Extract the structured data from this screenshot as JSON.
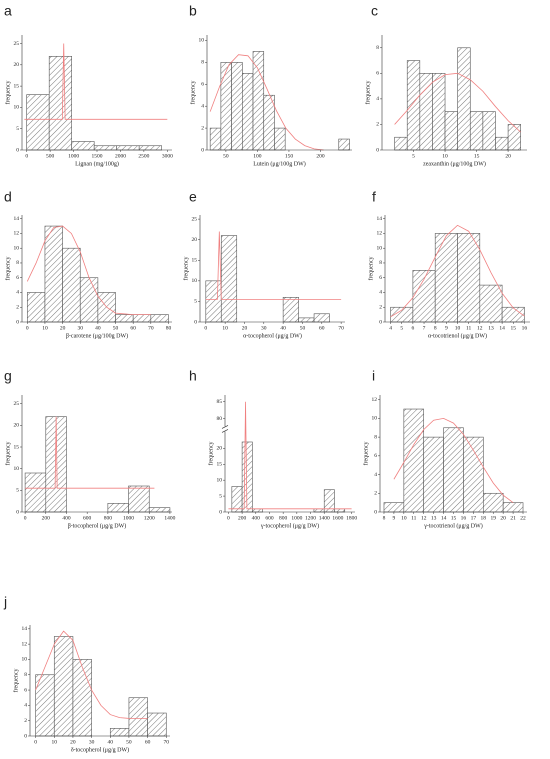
{
  "chart_data": [
    {
      "type": "histogram",
      "label": "a",
      "xlabel": "Lignan (mg/100g)",
      "ylabel": "frequency",
      "bins": [
        0,
        480,
        960,
        1440,
        1920,
        2400,
        2880
      ],
      "values": [
        13,
        22,
        2,
        1,
        1,
        1
      ],
      "color": "#555555",
      "curve": {
        "x": [
          -50,
          760,
          790,
          820,
          3000
        ],
        "values": [
          7.2,
          7.2,
          25,
          7.2,
          7.2
        ],
        "color": "#f08080"
      },
      "xlim": [
        -100,
        3100
      ],
      "ylim": [
        0,
        27
      ],
      "xticks": [
        0,
        500,
        1000,
        1500,
        2000,
        2500,
        3000
      ],
      "yticks": [
        0,
        5,
        10,
        15,
        20,
        25
      ]
    },
    {
      "type": "histogram",
      "label": "b",
      "xlabel": "Lutein (μg/100g DW)",
      "ylabel": "frequency",
      "bins": [
        25,
        42,
        59,
        76,
        93,
        110,
        127,
        144,
        161,
        178,
        195,
        212,
        229,
        246
      ],
      "values": [
        2,
        8,
        8,
        7,
        9,
        5,
        2,
        0,
        0,
        0,
        0,
        0,
        1
      ],
      "color": "#555555",
      "curve": {
        "x": [
          25,
          40,
          55,
          70,
          85,
          100,
          115,
          130,
          145,
          160,
          175,
          190,
          205
        ],
        "values": [
          3.5,
          5.8,
          7.8,
          8.7,
          8.6,
          7.5,
          5.6,
          3.6,
          2,
          1,
          0.4,
          0.1,
          0
        ],
        "color": "#f08080"
      },
      "xlim": [
        20,
        250
      ],
      "ylim": [
        0,
        10.5
      ],
      "xticks": [
        50,
        100,
        150,
        200
      ],
      "yticks": [
        0,
        2,
        4,
        6,
        8,
        10
      ]
    },
    {
      "type": "histogram",
      "label": "c",
      "xlabel": "zeaxanthin (μg/100g DW)",
      "ylabel": "frequency",
      "bins": [
        2,
        4,
        6,
        8,
        10,
        12,
        14,
        16,
        18,
        20,
        22
      ],
      "values": [
        1,
        7,
        6,
        6,
        3,
        8,
        3,
        3,
        1,
        2
      ],
      "color": "#555555",
      "curve": {
        "x": [
          2,
          4,
          6,
          8,
          10,
          12,
          14,
          16,
          18,
          20,
          22
        ],
        "values": [
          2,
          3.1,
          4.3,
          5.3,
          5.9,
          6,
          5.5,
          4.6,
          3.4,
          2.3,
          1.4
        ],
        "color": "#f08080"
      },
      "xlim": [
        0,
        23
      ],
      "ylim": [
        0,
        9
      ],
      "xticks": [
        5,
        10,
        15,
        20
      ],
      "yticks": [
        0,
        2,
        4,
        6,
        8
      ]
    },
    {
      "type": "histogram",
      "label": "d",
      "xlabel": "β-carotene (μg/100g DW)",
      "ylabel": "frequency",
      "bins": [
        0,
        10,
        20,
        30,
        40,
        50,
        60,
        70,
        80
      ],
      "values": [
        4,
        13,
        10,
        6,
        4,
        1,
        1,
        1
      ],
      "color": "#555555",
      "curve": {
        "x": [
          0,
          5,
          10,
          15,
          20,
          25,
          30,
          35,
          40,
          45,
          50,
          60,
          70
        ],
        "values": [
          5.5,
          8,
          11,
          12.8,
          13,
          12,
          9.5,
          6,
          3.5,
          2,
          1.2,
          1,
          1
        ],
        "color": "#f08080"
      },
      "xlim": [
        -3,
        82
      ],
      "ylim": [
        0,
        14.5
      ],
      "xticks": [
        0,
        10,
        20,
        30,
        40,
        50,
        60,
        70,
        80
      ],
      "yticks": [
        0,
        2,
        4,
        6,
        8,
        10,
        12,
        14
      ]
    },
    {
      "type": "histogram",
      "label": "e",
      "xlabel": "α-tocopherol (μg/g DW)",
      "ylabel": "frequency",
      "bins": [
        0,
        8,
        16,
        24,
        32,
        40,
        48,
        56,
        64
      ],
      "values": [
        10,
        21,
        0,
        0,
        0,
        6,
        1,
        2
      ],
      "color": "#555555",
      "curve": {
        "x": [
          0,
          6,
          7,
          8,
          70
        ],
        "values": [
          5.5,
          5.5,
          22,
          5.5,
          5.5
        ],
        "color": "#f08080"
      },
      "xlim": [
        -3,
        72
      ],
      "ylim": [
        0,
        26
      ],
      "xticks": [
        0,
        10,
        20,
        30,
        40,
        50,
        60,
        70
      ],
      "yticks": [
        0,
        5,
        10,
        15,
        20,
        25
      ]
    },
    {
      "type": "histogram",
      "label": "f",
      "xlabel": "α-tocotrienol (μg/g DW)",
      "ylabel": "frequency",
      "bins": [
        4,
        6,
        8,
        10,
        12,
        14,
        16
      ],
      "values": [
        2,
        7,
        12,
        12,
        5,
        2
      ],
      "color": "#555555",
      "curve": {
        "x": [
          4,
          5,
          6,
          7,
          8,
          9,
          10,
          11,
          12,
          13,
          14,
          15,
          16
        ],
        "values": [
          0.7,
          1.6,
          3.3,
          5.8,
          8.8,
          11.7,
          13.1,
          12.3,
          9.8,
          6.7,
          3.9,
          1.9,
          0.8
        ],
        "color": "#f08080"
      },
      "xlim": [
        3.5,
        16.5
      ],
      "ylim": [
        0,
        14.5
      ],
      "xticks": [
        4,
        5,
        6,
        7,
        8,
        9,
        10,
        11,
        12,
        13,
        14,
        15,
        16
      ],
      "yticks": [
        0,
        2,
        4,
        6,
        8,
        10,
        12,
        14
      ]
    },
    {
      "type": "histogram",
      "label": "g",
      "xlabel": "β-tocopherol (μg/g DW)",
      "ylabel": "frequency",
      "bins": [
        0,
        200,
        400,
        600,
        800,
        1000,
        1200,
        1400
      ],
      "values": [
        9,
        22,
        0,
        0,
        2,
        6,
        1
      ],
      "color": "#555555",
      "curve": {
        "x": [
          0,
          290,
          300,
          310,
          1250
        ],
        "values": [
          5.5,
          5.5,
          22,
          5.5,
          5.5
        ],
        "color": "#f08080"
      },
      "xlim": [
        -30,
        1420
      ],
      "ylim": [
        0,
        27
      ],
      "xticks": [
        0,
        200,
        400,
        600,
        800,
        1000,
        1200,
        1400
      ],
      "yticks": [
        0,
        5,
        10,
        15,
        20,
        25
      ]
    },
    {
      "type": "histogram",
      "label": "h",
      "xlabel": "γ-tocopherol (μg/g DW)",
      "ylabel": "frequency",
      "bins": [
        50,
        200,
        350,
        500,
        650,
        800,
        950,
        1100,
        1250,
        1400,
        1550,
        1700
      ],
      "values": [
        8,
        22,
        1,
        0,
        0,
        0,
        0,
        0,
        1,
        7,
        1
      ],
      "color": "#555555",
      "curve": {
        "x": [
          0,
          230,
          250,
          270,
          1800
        ],
        "values": [
          1,
          1,
          85,
          1,
          1
        ],
        "color": "#f08080"
      },
      "xlim": [
        -50,
        1850
      ],
      "ylim": [
        0,
        87
      ],
      "ybreak": [
        25,
        78
      ],
      "xticks": [
        0,
        200,
        400,
        600,
        800,
        1000,
        1200,
        1400,
        1600,
        1800
      ],
      "yticks": [
        0,
        5,
        10,
        15,
        20,
        80,
        85
      ]
    },
    {
      "type": "histogram",
      "label": "i",
      "xlabel": "γ-tocotrienol (μg/g DW)",
      "ylabel": "frequency",
      "bins": [
        8,
        10,
        12,
        14,
        16,
        18,
        20,
        22
      ],
      "values": [
        1,
        11,
        8,
        9,
        8,
        2,
        1
      ],
      "color": "#555555",
      "curve": {
        "x": [
          9,
          10,
          11,
          12,
          13,
          14,
          15,
          16,
          17,
          18,
          19,
          20,
          21
        ],
        "values": [
          3.5,
          5.3,
          7.2,
          8.8,
          9.8,
          10,
          9.5,
          8.3,
          6.6,
          4.8,
          3.1,
          1.8,
          1
        ],
        "color": "#f08080"
      },
      "xlim": [
        7.6,
        22.4
      ],
      "ylim": [
        0,
        12.5
      ],
      "xticks": [
        8,
        9,
        10,
        11,
        12,
        13,
        14,
        15,
        16,
        17,
        18,
        19,
        20,
        21,
        22
      ],
      "yticks": [
        0,
        2,
        4,
        6,
        8,
        10,
        12
      ]
    },
    {
      "type": "histogram",
      "label": "j",
      "xlabel": "δ-tocopherol (μg/g DW)",
      "ylabel": "frequency",
      "bins": [
        0,
        10,
        20,
        30,
        40,
        50,
        60,
        70
      ],
      "values": [
        8,
        13,
        10,
        0,
        1,
        5,
        3
      ],
      "color": "#555555",
      "curve": {
        "x": [
          0,
          5,
          10,
          15,
          20,
          25,
          30,
          35,
          40,
          45,
          50,
          55,
          60
        ],
        "values": [
          6,
          9,
          12,
          13.7,
          12.5,
          9,
          6,
          4,
          2.8,
          2.4,
          2.3,
          2.3,
          2.3
        ],
        "color": "#f08080"
      },
      "xlim": [
        -3,
        72
      ],
      "ylim": [
        0,
        14.5
      ],
      "xticks": [
        0,
        10,
        20,
        30,
        40,
        50,
        60,
        70
      ],
      "yticks": [
        0,
        2,
        4,
        6,
        8,
        10,
        12,
        14
      ]
    }
  ]
}
